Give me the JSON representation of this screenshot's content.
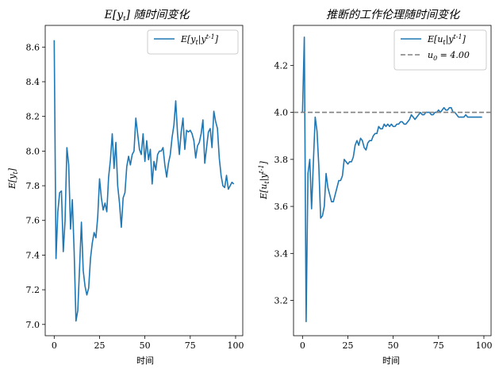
{
  "chart_data": [
    {
      "type": "line",
      "title": "E[y_t] 随时间变化",
      "xlabel": "时间",
      "ylabel": "E[y_t]",
      "xlim": [
        -4.95,
        103.95
      ],
      "ylim": [
        6.935,
        8.725
      ],
      "xticks": [
        0,
        25,
        50,
        75,
        100
      ],
      "yticks": [
        7.0,
        7.2,
        7.4,
        7.6,
        7.8,
        8.0,
        8.2,
        8.4,
        8.6
      ],
      "xtick_labels": [
        "0",
        "25",
        "50",
        "75",
        "100"
      ],
      "ytick_labels": [
        "7.0",
        "7.2",
        "7.4",
        "7.6",
        "7.8",
        "8.0",
        "8.2",
        "8.4",
        "8.6"
      ],
      "grid": false,
      "legend_position": "top-right",
      "series": [
        {
          "name": "E[y_t|y^{t-1}]",
          "color": "#1f77b4",
          "style": "solid",
          "x": [
            0,
            1,
            2,
            3,
            4,
            5,
            6,
            7,
            8,
            9,
            10,
            11,
            12,
            13,
            14,
            15,
            16,
            17,
            18,
            19,
            20,
            21,
            22,
            23,
            24,
            25,
            26,
            27,
            28,
            29,
            30,
            31,
            32,
            33,
            34,
            35,
            36,
            37,
            38,
            39,
            40,
            41,
            42,
            43,
            44,
            45,
            46,
            47,
            48,
            49,
            50,
            51,
            52,
            53,
            54,
            55,
            56,
            57,
            58,
            59,
            60,
            61,
            62,
            63,
            64,
            65,
            66,
            67,
            68,
            69,
            70,
            71,
            72,
            73,
            74,
            75,
            76,
            77,
            78,
            79,
            80,
            81,
            82,
            83,
            84,
            85,
            86,
            87,
            88,
            89,
            90,
            91,
            92,
            93,
            94,
            95,
            96,
            97,
            98,
            99
          ],
          "values": [
            8.64,
            7.38,
            7.65,
            7.76,
            7.77,
            7.42,
            7.6,
            8.02,
            7.92,
            7.55,
            7.72,
            7.42,
            7.02,
            7.08,
            7.33,
            7.59,
            7.31,
            7.22,
            7.17,
            7.21,
            7.38,
            7.47,
            7.53,
            7.5,
            7.62,
            7.84,
            7.73,
            7.66,
            7.7,
            7.65,
            7.85,
            7.95,
            8.1,
            7.9,
            8.05,
            7.8,
            7.7,
            7.56,
            7.73,
            7.76,
            7.91,
            7.97,
            7.92,
            7.98,
            8.0,
            8.19,
            8.1,
            8.01,
            7.98,
            8.1,
            7.94,
            8.06,
            7.95,
            8.01,
            7.81,
            7.94,
            7.89,
            7.98,
            8.0,
            8.0,
            8.02,
            7.92,
            7.85,
            7.93,
            7.98,
            8.08,
            8.15,
            8.29,
            8.1,
            7.98,
            8.11,
            8.19,
            8.01,
            8.12,
            8.11,
            8.12,
            8.1,
            8.06,
            7.96,
            8.03,
            8.05,
            8.1,
            8.18,
            7.93,
            8.02,
            8.11,
            8.13,
            8.02,
            8.23,
            8.17,
            8.13,
            7.96,
            7.86,
            7.8,
            7.79,
            7.86,
            7.78,
            7.8,
            7.82,
            7.81
          ]
        }
      ]
    },
    {
      "type": "line",
      "title": "推断的工作伦理随时间变化",
      "xlabel": "时间",
      "ylabel": "E[u_t|y^{t-1}]",
      "xlim": [
        -4.95,
        103.95
      ],
      "ylim": [
        3.05,
        4.37
      ],
      "xticks": [
        0,
        25,
        50,
        75,
        100
      ],
      "yticks": [
        3.2,
        3.4,
        3.6,
        3.8,
        4.0,
        4.2
      ],
      "xtick_labels": [
        "0",
        "25",
        "50",
        "75",
        "100"
      ],
      "ytick_labels": [
        "3.2",
        "3.4",
        "3.6",
        "3.8",
        "4.0",
        "4.2"
      ],
      "grid": false,
      "legend_position": "top-right",
      "series": [
        {
          "name": "E[u_t|y^{t-1}]",
          "color": "#1f77b4",
          "style": "solid",
          "x": [
            0,
            1,
            2,
            3,
            4,
            5,
            6,
            7,
            8,
            9,
            10,
            11,
            12,
            13,
            14,
            15,
            16,
            17,
            18,
            19,
            20,
            21,
            22,
            23,
            24,
            25,
            26,
            27,
            28,
            29,
            30,
            31,
            32,
            33,
            34,
            35,
            36,
            37,
            38,
            39,
            40,
            41,
            42,
            43,
            44,
            45,
            46,
            47,
            48,
            49,
            50,
            51,
            52,
            53,
            54,
            55,
            56,
            57,
            58,
            59,
            60,
            61,
            62,
            63,
            64,
            65,
            66,
            67,
            68,
            69,
            70,
            71,
            72,
            73,
            74,
            75,
            76,
            77,
            78,
            79,
            80,
            81,
            82,
            83,
            84,
            85,
            86,
            87,
            88,
            89,
            90,
            91,
            92,
            93,
            94,
            95,
            96,
            97,
            98,
            99
          ],
          "values": [
            4.0,
            4.32,
            3.11,
            3.74,
            3.8,
            3.59,
            3.79,
            3.98,
            3.92,
            3.77,
            3.55,
            3.56,
            3.6,
            3.74,
            3.68,
            3.65,
            3.62,
            3.62,
            3.65,
            3.68,
            3.71,
            3.71,
            3.73,
            3.8,
            3.79,
            3.78,
            3.79,
            3.79,
            3.81,
            3.86,
            3.88,
            3.86,
            3.89,
            3.88,
            3.85,
            3.84,
            3.87,
            3.88,
            3.88,
            3.9,
            3.91,
            3.91,
            3.94,
            3.93,
            3.93,
            3.95,
            3.94,
            3.95,
            3.94,
            3.95,
            3.94,
            3.94,
            3.95,
            3.95,
            3.96,
            3.96,
            3.95,
            3.95,
            3.96,
            3.97,
            3.99,
            3.98,
            3.97,
            3.98,
            3.99,
            4.0,
            3.99,
            3.99,
            4.0,
            4.0,
            4.0,
            3.99,
            3.99,
            4.0,
            4.0,
            4.01,
            4.0,
            4.01,
            4.02,
            4.01,
            4.01,
            4.02,
            4.02,
            4.0,
            4.0,
            3.99,
            3.98,
            3.98,
            3.98,
            3.98,
            3.99,
            3.98,
            3.98,
            3.98,
            3.98,
            3.98,
            3.98,
            3.98,
            3.98,
            3.98
          ]
        },
        {
          "name": "u_0 = 4.00",
          "color": "#808080",
          "style": "dashed",
          "x": [
            -4.95,
            103.95
          ],
          "values": [
            4.0,
            4.0
          ]
        }
      ]
    }
  ]
}
